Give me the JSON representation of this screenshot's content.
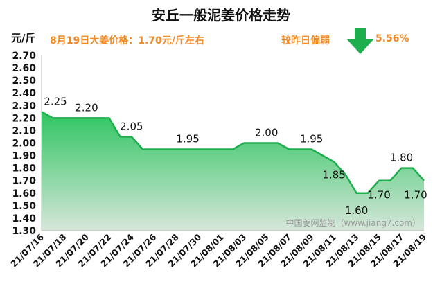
{
  "header": {
    "title": "安丘一般泥姜价格走势",
    "unit": "元/斤",
    "price_note": "8月19日大姜价格：1.70元/斤左右",
    "compare_label": "较昨日偏弱",
    "change_value": "5.56%",
    "trend_icon": "down-arrow-icon"
  },
  "watermark": "中国姜网监制（www.jiang7.com）",
  "colors": {
    "line": "#1fae4e",
    "fill_top": "#2fc561",
    "fill_bottom": "#d6e6da",
    "accent_text": "#f08a24",
    "arrow": "#1fae4e"
  },
  "chart_data": {
    "type": "area",
    "title": "安丘一般泥姜价格走势",
    "ylabel": "元/斤",
    "ylim": [
      1.3,
      2.7
    ],
    "yticks": [
      "1.30",
      "1.40",
      "1.50",
      "1.60",
      "1.70",
      "1.80",
      "1.90",
      "2.00",
      "2.10",
      "2.20",
      "2.30",
      "2.40",
      "2.50",
      "2.60",
      "2.70"
    ],
    "xtick_labels": [
      "21/07/16",
      "21/07/18",
      "21/07/20",
      "21/07/22",
      "21/07/24",
      "21/07/26",
      "21/07/28",
      "21/07/30",
      "21/08/01",
      "21/08/03",
      "21/08/05",
      "21/08/07",
      "21/08/09",
      "21/08/11",
      "21/08/13",
      "21/08/15",
      "21/08/17",
      "21/08/19"
    ],
    "x": [
      "21/07/16",
      "21/07/17",
      "21/07/18",
      "21/07/19",
      "21/07/20",
      "21/07/21",
      "21/07/22",
      "21/07/23",
      "21/07/24",
      "21/07/25",
      "21/07/26",
      "21/07/27",
      "21/07/28",
      "21/07/29",
      "21/07/30",
      "21/07/31",
      "21/08/01",
      "21/08/02",
      "21/08/03",
      "21/08/04",
      "21/08/05",
      "21/08/06",
      "21/08/07",
      "21/08/08",
      "21/08/09",
      "21/08/10",
      "21/08/11",
      "21/08/12",
      "21/08/13",
      "21/08/14",
      "21/08/15",
      "21/08/16",
      "21/08/17",
      "21/08/18",
      "21/08/19"
    ],
    "values": [
      2.25,
      2.2,
      2.2,
      2.2,
      2.2,
      2.2,
      2.2,
      2.05,
      2.05,
      1.95,
      1.95,
      1.95,
      1.95,
      1.95,
      1.95,
      1.95,
      1.95,
      1.95,
      2.0,
      2.0,
      2.0,
      2.0,
      1.95,
      1.95,
      1.95,
      1.9,
      1.85,
      1.75,
      1.6,
      1.6,
      1.7,
      1.7,
      1.8,
      1.8,
      1.7
    ],
    "data_labels": [
      {
        "index": 0,
        "text": "2.25"
      },
      {
        "index": 4,
        "text": "2.20"
      },
      {
        "index": 8,
        "text": "2.05"
      },
      {
        "index": 13,
        "text": "1.95"
      },
      {
        "index": 20,
        "text": "2.00"
      },
      {
        "index": 24,
        "text": "1.95"
      },
      {
        "index": 26,
        "text": "1.85"
      },
      {
        "index": 28,
        "text": "1.60"
      },
      {
        "index": 30,
        "text": "1.70"
      },
      {
        "index": 32,
        "text": "1.80"
      },
      {
        "index": 34,
        "text": "1.70"
      }
    ],
    "grid": false
  }
}
